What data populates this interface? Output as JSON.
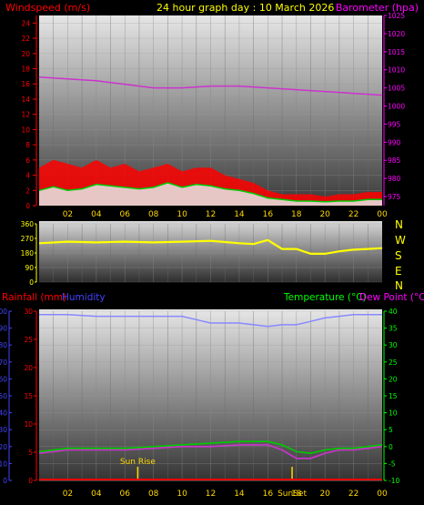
{
  "header": {
    "wind_label": "Windspeed (m/s)",
    "title": "24 hour graph day : 10 March 2026",
    "baro_label": "Barometer (hpa)"
  },
  "compass": [
    "N",
    "W",
    "S",
    "E",
    "N"
  ],
  "bottom_labels": {
    "rain": "Rainfall (mm)",
    "humidity": "Humidity",
    "temperature": "Temperature (°C)",
    "dewpoint": "Dew Point (°C)"
  },
  "events": {
    "sunrise": "Sun Rise",
    "sunset": "SunSet"
  },
  "colors": {
    "wind": "#ff0000",
    "gust_fill": "#ff0000",
    "avg_wind": "#00cc00",
    "baro": "#cc33cc",
    "direction": "#ffff00",
    "direction_avg": "#cccc00",
    "humidity": "#8888ff",
    "temperature": "#00cc00",
    "dewpoint": "#cc33cc",
    "rain": "#ff0000",
    "axis_left": "#ff0000",
    "axis_right": "#ff00ff",
    "axis_temp": "#00ff00",
    "axis_blue": "#4444ff"
  },
  "chart_data": [
    {
      "type": "area",
      "name": "wind-barometer",
      "x_ticks": [
        "02",
        "04",
        "06",
        "08",
        "10",
        "12",
        "14",
        "16",
        "18",
        "20",
        "22",
        "00"
      ],
      "x_range_hours": [
        0,
        24
      ],
      "y_left": {
        "label": "Windspeed (m/s)",
        "range": [
          0,
          25
        ],
        "ticks": [
          0,
          2,
          4,
          6,
          8,
          10,
          12,
          14,
          16,
          18,
          20,
          22,
          24
        ]
      },
      "y_right": {
        "label": "Barometer (hpa)",
        "range": [
          972.5,
          1025
        ],
        "ticks": [
          975,
          980,
          985,
          990,
          995,
          1000,
          1005,
          1010,
          1015,
          1020,
          1025
        ]
      },
      "series": [
        {
          "key": "gust",
          "hours": [
            0,
            1,
            2,
            3,
            4,
            5,
            6,
            7,
            8,
            9,
            10,
            11,
            12,
            13,
            14,
            15,
            16,
            17,
            18,
            19,
            20,
            21,
            22,
            23,
            24
          ],
          "values": [
            5,
            6,
            5.5,
            5,
            6,
            5,
            5.5,
            4.5,
            5,
            5.5,
            4.5,
            5,
            5,
            4,
            3.5,
            3,
            2,
            1.5,
            1.5,
            1.5,
            1.2,
            1.5,
            1.5,
            1.8,
            1.8
          ]
        },
        {
          "key": "avg_wind",
          "hours": [
            0,
            1,
            2,
            3,
            4,
            5,
            6,
            7,
            8,
            9,
            10,
            11,
            12,
            13,
            14,
            15,
            16,
            17,
            18,
            19,
            20,
            21,
            22,
            23,
            24
          ],
          "values": [
            2,
            2.5,
            2,
            2.2,
            2.8,
            2.6,
            2.4,
            2.2,
            2.4,
            3,
            2.4,
            2.8,
            2.6,
            2.2,
            2,
            1.6,
            1,
            0.8,
            0.6,
            0.6,
            0.5,
            0.6,
            0.6,
            0.8,
            0.8
          ]
        },
        {
          "key": "baro",
          "hours": [
            0,
            2,
            4,
            6,
            8,
            10,
            12,
            14,
            16,
            18,
            20,
            22,
            24
          ],
          "values": [
            1008,
            1007.5,
            1007,
            1006,
            1005,
            1005,
            1005.5,
            1005.5,
            1005,
            1004.5,
            1004,
            1003.5,
            1003
          ]
        }
      ]
    },
    {
      "type": "line",
      "name": "wind-direction",
      "x_range_hours": [
        0,
        24
      ],
      "y": {
        "range": [
          0,
          360
        ],
        "ticks": [
          0,
          90,
          180,
          270,
          360
        ]
      },
      "series": [
        {
          "key": "direction",
          "hours": [
            0,
            2,
            4,
            6,
            8,
            10,
            12,
            14,
            15,
            16,
            17,
            18,
            19,
            20,
            21,
            22,
            23,
            24
          ],
          "values": [
            240,
            250,
            245,
            250,
            245,
            250,
            255,
            240,
            235,
            260,
            205,
            205,
            175,
            175,
            190,
            200,
            205,
            210
          ]
        }
      ]
    },
    {
      "type": "line",
      "name": "temperature-humidity-rain",
      "x_ticks": [
        "02",
        "04",
        "06",
        "08",
        "10",
        "12",
        "14",
        "16",
        "18",
        "20",
        "22",
        "00"
      ],
      "x_range_hours": [
        0,
        24
      ],
      "y_left_rain": {
        "label": "Rainfall (mm)",
        "range": [
          0,
          30
        ],
        "ticks": [
          0,
          5,
          10,
          15,
          20,
          25,
          30
        ]
      },
      "y_left_humidity": {
        "label": "Humidity",
        "range": [
          0,
          100
        ],
        "ticks": [
          0,
          10,
          20,
          30,
          40,
          50,
          60,
          70,
          80,
          90,
          100
        ]
      },
      "y_right": {
        "label": "Temperature (°C)",
        "range": [
          -10,
          40
        ],
        "ticks": [
          -10,
          -5,
          0,
          5,
          10,
          15,
          20,
          25,
          30,
          35,
          40
        ]
      },
      "events_hours": {
        "sunrise": 6.9,
        "sunset": 17.7
      },
      "series": [
        {
          "key": "humidity",
          "hours": [
            0,
            2,
            4,
            6,
            8,
            10,
            11,
            12,
            13,
            14,
            15,
            16,
            17,
            18,
            19,
            20,
            21,
            22,
            23,
            24
          ],
          "values": [
            98,
            98,
            97,
            97,
            97,
            97,
            95,
            93,
            93,
            93,
            92,
            91,
            92,
            92,
            94,
            96,
            97,
            98,
            98,
            98
          ]
        },
        {
          "key": "temperature",
          "hours": [
            0,
            2,
            4,
            6,
            8,
            10,
            12,
            14,
            16,
            17,
            18,
            19,
            20,
            21,
            22,
            23,
            24
          ],
          "values": [
            -1.5,
            -0.5,
            -0.5,
            -0.5,
            0,
            0.5,
            1,
            1.5,
            1.5,
            0.5,
            -1.5,
            -2,
            -1,
            -0.5,
            -0.5,
            0,
            0.5
          ]
        },
        {
          "key": "dewpoint",
          "hours": [
            0,
            2,
            4,
            6,
            8,
            10,
            12,
            14,
            16,
            17,
            18,
            19,
            20,
            21,
            22,
            23,
            24
          ],
          "values": [
            -2,
            -1,
            -1,
            -1,
            -0.5,
            0,
            0,
            0.5,
            0.5,
            -1,
            -3.5,
            -3.5,
            -2,
            -1,
            -1,
            -0.5,
            0
          ]
        },
        {
          "key": "rain",
          "hours": [
            0,
            24
          ],
          "values": [
            0,
            0
          ]
        }
      ]
    }
  ]
}
